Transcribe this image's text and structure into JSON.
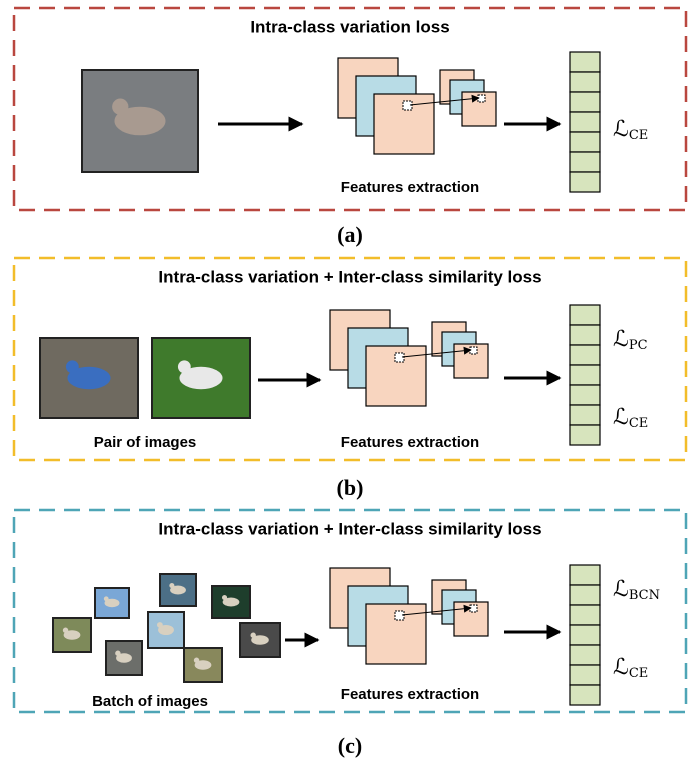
{
  "panels": [
    {
      "title": "Intra-class variation loss",
      "input_label": null,
      "features_label": "Features extraction",
      "losses": [
        {
          "symbol": "ℒ",
          "sub": "CE"
        }
      ],
      "caption": "(a)"
    },
    {
      "title": "Intra-class variation + Inter-class similarity loss",
      "input_label": "Pair of images",
      "features_label": "Features extraction",
      "losses": [
        {
          "symbol": "ℒ",
          "sub": "PC"
        },
        {
          "symbol": "ℒ",
          "sub": "CE"
        }
      ],
      "caption": "(b)"
    },
    {
      "title": "Intra-class variation + Inter-class similarity loss",
      "input_label": "Batch of images",
      "features_label": "Features extraction",
      "losses": [
        {
          "symbol": "ℒ",
          "sub": "BCN"
        },
        {
          "symbol": "ℒ",
          "sub": "CE"
        }
      ],
      "caption": "(c)"
    }
  ]
}
